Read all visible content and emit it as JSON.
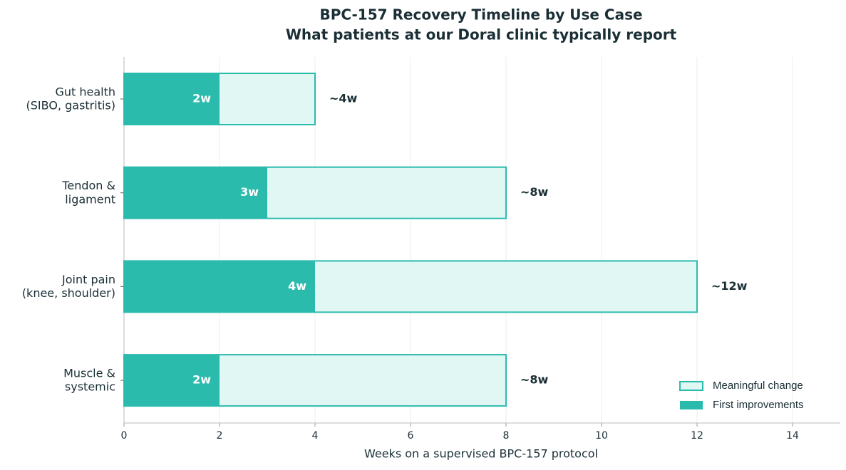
{
  "chart_data": {
    "type": "bar",
    "orientation": "horizontal",
    "title": "BPC-157 Recovery Timeline by Use Case",
    "subtitle": "What patients at our Doral clinic typically report",
    "x_label": "Weeks on a supervised BPC-157 protocol",
    "categories": [
      "Gut health\n(SIBO, gastritis)",
      "Tendon &\nligament",
      "Joint pain\n(knee, shoulder)",
      "Muscle &\nsystemic"
    ],
    "series": [
      {
        "name": "Meaningful change",
        "color": "#e0f7f3",
        "edge_color": "#2bbbad",
        "values": [
          4,
          8,
          12,
          8
        ],
        "value_labels": [
          "~4w",
          "~8w",
          "~12w",
          "~8w"
        ]
      },
      {
        "name": "First improvements",
        "color": "#2bbbad",
        "values": [
          2,
          3,
          4,
          2
        ],
        "value_labels": [
          "2w",
          "3w",
          "4w",
          "2w"
        ]
      }
    ],
    "xlim": [
      0,
      15
    ],
    "xticks": [
      0,
      2,
      4,
      6,
      8,
      10,
      12,
      14
    ],
    "grid": true,
    "legend": "lower right"
  }
}
